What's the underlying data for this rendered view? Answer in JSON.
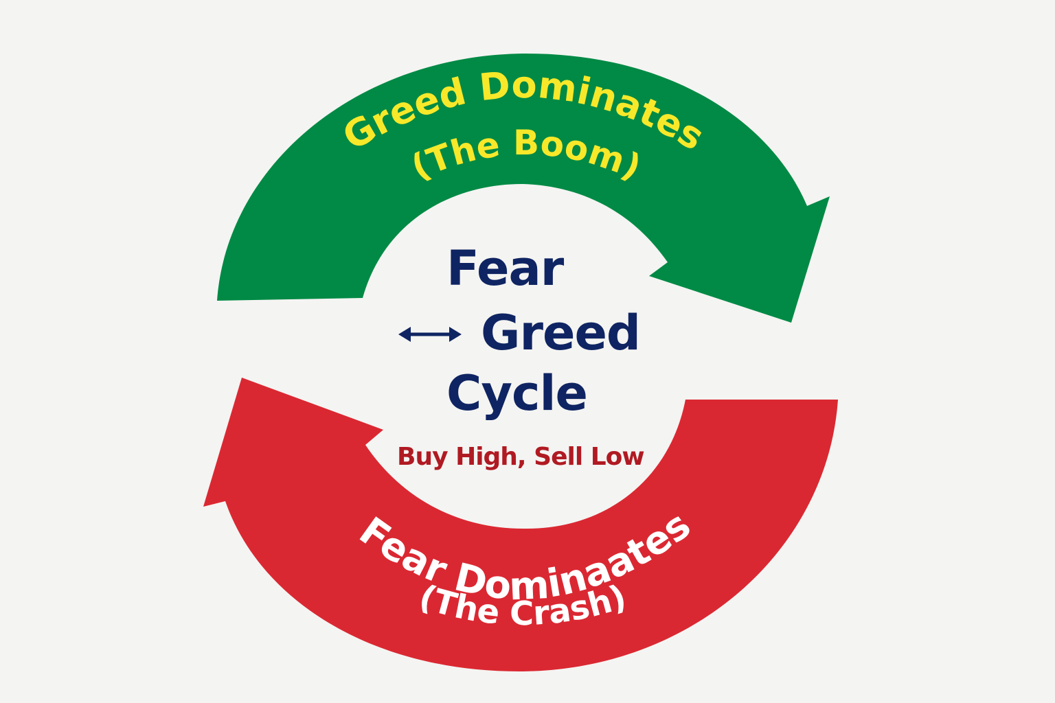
{
  "diagram": {
    "top_arrow": {
      "title": "Greed Dominates",
      "subtitle": "(The Boom)",
      "fill_color": "#008a45",
      "text_color": "#f7e82a"
    },
    "bottom_arrow": {
      "title": "Fear Dominaates",
      "subtitle": "(The Crash)",
      "fill_color": "#da2832",
      "text_color": "#ffffff"
    },
    "center": {
      "line1": "Fear",
      "line2": "Greed",
      "line3": "Cycle",
      "subtitle": "Buy High, Sell Low",
      "title_color": "#0f2462",
      "subtitle_color": "#b01a22"
    },
    "background_color": "#f4f4f2"
  }
}
